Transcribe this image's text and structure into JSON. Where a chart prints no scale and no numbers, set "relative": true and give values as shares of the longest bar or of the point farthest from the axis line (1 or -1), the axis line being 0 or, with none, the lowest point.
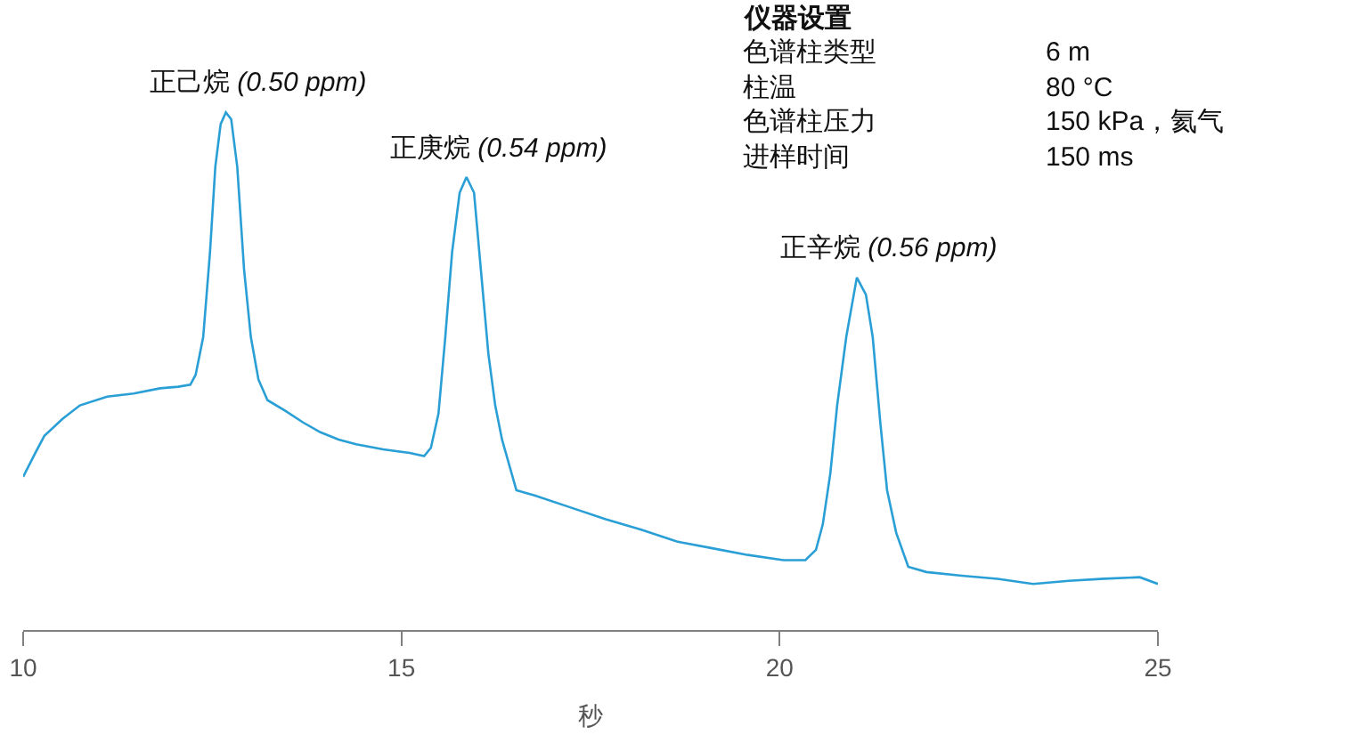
{
  "chart_data": {
    "type": "line",
    "relative": true,
    "xlabel": "秒",
    "xlim": [
      10,
      25
    ],
    "xticks": [
      10,
      15,
      20,
      25
    ],
    "marker": "none",
    "line_style": "solid",
    "x": [
      10.0,
      10.16,
      10.28,
      10.52,
      10.75,
      11.11,
      11.46,
      11.81,
      12.05,
      12.21,
      12.28,
      12.38,
      12.47,
      12.54,
      12.61,
      12.68,
      12.75,
      12.83,
      12.92,
      13.01,
      13.11,
      13.23,
      13.46,
      13.7,
      13.93,
      14.17,
      14.4,
      14.76,
      15.11,
      15.3,
      15.39,
      15.49,
      15.58,
      15.67,
      15.77,
      15.86,
      15.96,
      16.05,
      16.15,
      16.24,
      16.33,
      16.52,
      16.76,
      17.23,
      17.7,
      18.17,
      18.64,
      19.11,
      19.58,
      20.05,
      20.34,
      20.48,
      20.57,
      20.67,
      20.76,
      20.88,
      21.02,
      21.14,
      21.23,
      21.33,
      21.42,
      21.54,
      21.7,
      21.94,
      22.41,
      22.88,
      23.35,
      23.82,
      24.29,
      24.76,
      25.0
    ],
    "series": [
      {
        "color": "#2a9fd6",
        "values": [
          0.296,
          0.342,
          0.375,
          0.408,
          0.434,
          0.451,
          0.457,
          0.467,
          0.47,
          0.474,
          0.493,
          0.566,
          0.73,
          0.895,
          0.977,
          1.0,
          0.987,
          0.895,
          0.697,
          0.566,
          0.484,
          0.444,
          0.424,
          0.401,
          0.382,
          0.368,
          0.359,
          0.349,
          0.342,
          0.336,
          0.352,
          0.418,
          0.566,
          0.73,
          0.845,
          0.875,
          0.845,
          0.697,
          0.533,
          0.434,
          0.368,
          0.27,
          0.26,
          0.237,
          0.214,
          0.194,
          0.171,
          0.158,
          0.145,
          0.135,
          0.135,
          0.155,
          0.204,
          0.303,
          0.434,
          0.566,
          0.681,
          0.648,
          0.566,
          0.401,
          0.27,
          0.188,
          0.122,
          0.112,
          0.105,
          0.099,
          0.089,
          0.095,
          0.099,
          0.102,
          0.089
        ]
      }
    ],
    "annotations": [
      {
        "text": "正己烷 (0.50 ppm)",
        "x": 12.68,
        "y": 1.0
      },
      {
        "text": "正庚烷 (0.54 ppm)",
        "x": 15.86,
        "y": 0.875
      },
      {
        "text": "正辛烷 (0.56 ppm)",
        "x": 21.02,
        "y": 0.681
      },
      "仪器设置",
      "色谱柱类型",
      "6 m",
      "柱温",
      "80 °C",
      "色谱柱压力",
      "150 kPa，氦气",
      "进样时间",
      "150 ms"
    ]
  }
}
